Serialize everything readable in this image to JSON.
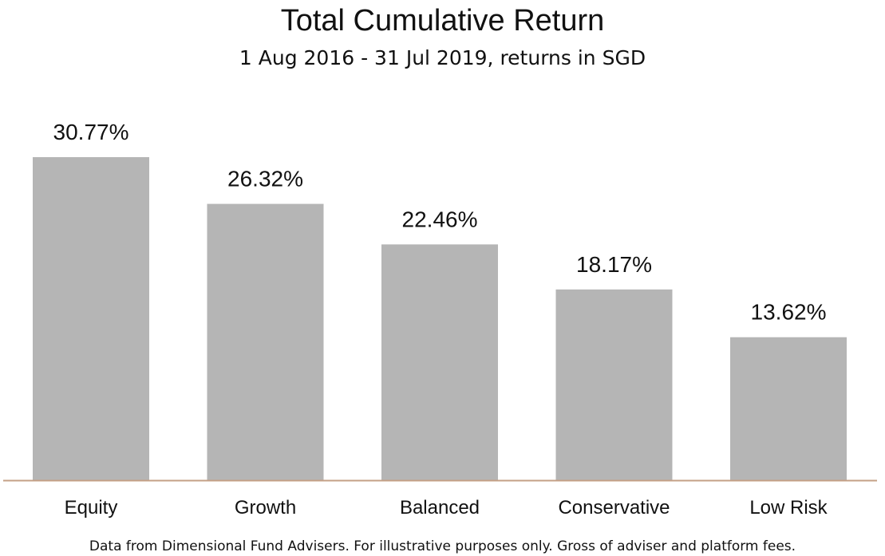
{
  "chart_data": {
    "type": "bar",
    "title": "Total Cumulative Return",
    "subtitle": "1 Aug 2016 - 31 Jul 2019, returns in SGD",
    "categories": [
      "Equity",
      "Growth",
      "Balanced",
      "Conservative",
      "Low Risk"
    ],
    "values": [
      30.77,
      26.32,
      22.46,
      18.17,
      13.62
    ],
    "value_labels": [
      "30.77%",
      "26.32%",
      "22.46%",
      "18.17%",
      "13.62%"
    ],
    "xlabel": "",
    "ylabel": "",
    "ylim": [
      0,
      30.77
    ],
    "grid": false,
    "legend": "none",
    "bar_color": "#b5b5b5",
    "axis_color": "#c4a086"
  },
  "footnote": "Data from Dimensional Fund Advisers. For illustrative purposes only. Gross of adviser and platform fees."
}
